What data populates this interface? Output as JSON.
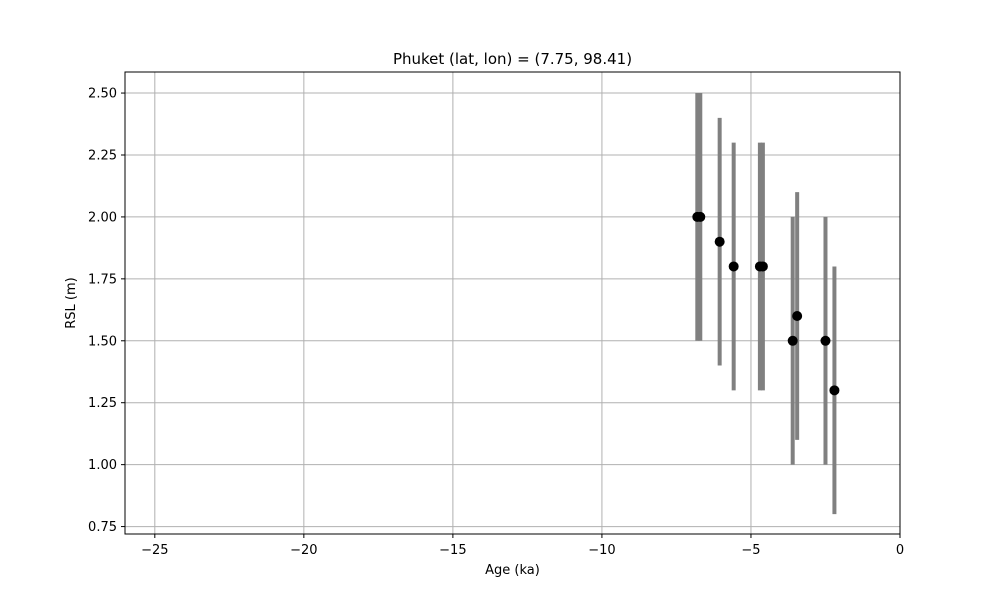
{
  "chart_data": {
    "type": "scatter",
    "title": "Phuket (lat, lon) = (7.75, 98.41)",
    "xlabel": "Age (ka)",
    "ylabel": "RSL (m)",
    "xlim": [
      -26,
      0
    ],
    "ylim": [
      0.72,
      2.585
    ],
    "xticks": [
      -25,
      -20,
      -15,
      -10,
      -5,
      0
    ],
    "xtick_labels": [
      "−25",
      "−20",
      "−15",
      "−10",
      "−5",
      "0"
    ],
    "yticks": [
      0.75,
      1.0,
      1.25,
      1.5,
      1.75,
      2.0,
      2.25,
      2.5
    ],
    "ytick_labels": [
      "0.75",
      "1.00",
      "1.25",
      "1.50",
      "1.75",
      "2.00",
      "2.25",
      "2.50"
    ],
    "grid": true,
    "colors": {
      "point": "#000000",
      "errorbar": "#808080",
      "grid": "#b0b0b0"
    },
    "points": [
      {
        "x": -6.8,
        "y": 2.0,
        "ylow": 1.5,
        "yhigh": 2.5
      },
      {
        "x": -6.7,
        "y": 2.0,
        "ylow": 1.5,
        "yhigh": 2.5
      },
      {
        "x": -6.05,
        "y": 1.9,
        "ylow": 1.4,
        "yhigh": 2.4
      },
      {
        "x": -5.58,
        "y": 1.8,
        "ylow": 1.3,
        "yhigh": 2.3
      },
      {
        "x": -4.7,
        "y": 1.8,
        "ylow": 1.3,
        "yhigh": 2.3
      },
      {
        "x": -4.6,
        "y": 1.8,
        "ylow": 1.3,
        "yhigh": 2.3
      },
      {
        "x": -3.6,
        "y": 1.5,
        "ylow": 1.0,
        "yhigh": 2.0
      },
      {
        "x": -3.45,
        "y": 1.6,
        "ylow": 1.1,
        "yhigh": 2.1
      },
      {
        "x": -2.5,
        "y": 1.5,
        "ylow": 1.0,
        "yhigh": 2.0
      },
      {
        "x": -2.2,
        "y": 1.3,
        "ylow": 0.8,
        "yhigh": 1.8
      }
    ]
  }
}
